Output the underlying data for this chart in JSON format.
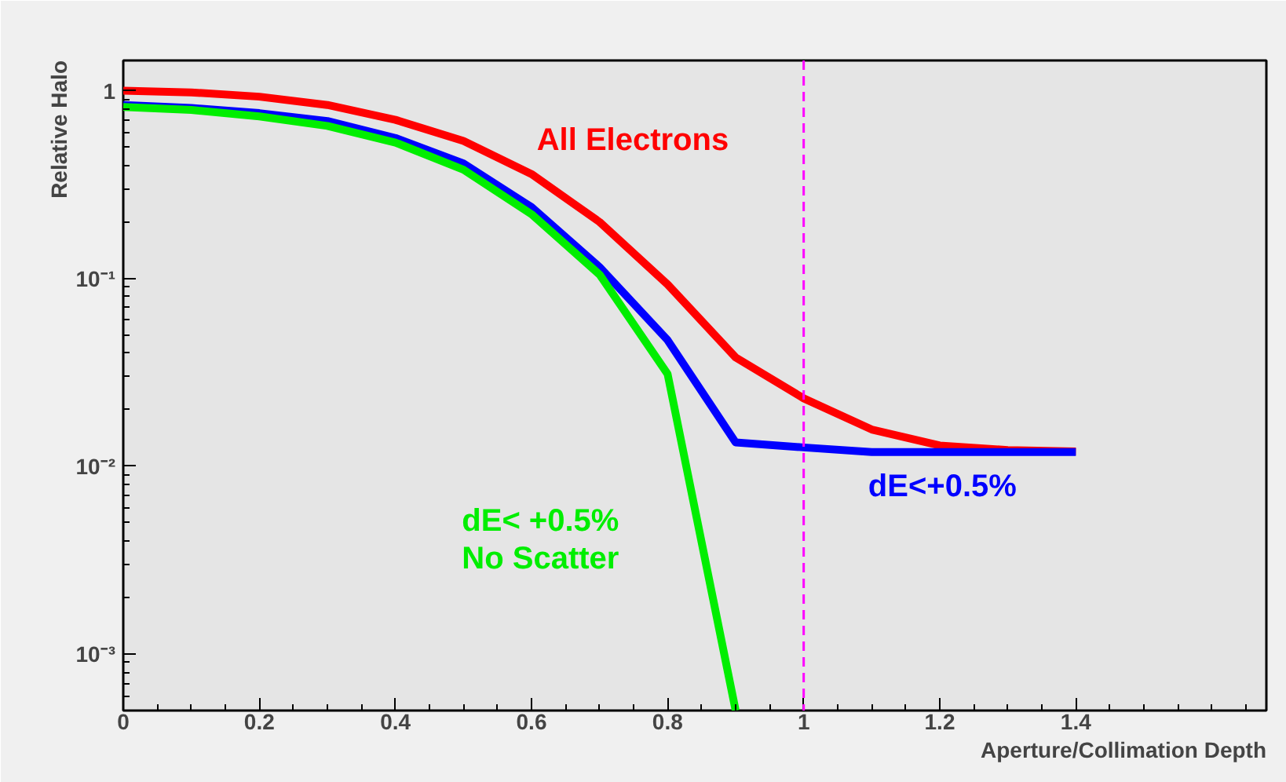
{
  "chart_data": {
    "type": "line",
    "xlabel": "Aperture/Collimation Depth",
    "ylabel": "Relative Halo",
    "log": "y",
    "grid": false,
    "marker": "none",
    "line_style": "solid",
    "x": [
      0,
      0.1,
      0.2,
      0.3,
      0.4,
      0.5,
      0.6,
      0.7,
      0.8,
      0.9,
      1.0,
      1.1,
      1.2,
      1.3,
      1.4
    ],
    "xlim": [
      0,
      1.68
    ],
    "xticks": [
      0,
      0.2,
      0.4,
      0.6,
      0.8,
      1,
      1.2,
      1.4
    ],
    "ylim": [
      0.0005,
      1.45
    ],
    "yticks": [
      {
        "value": 0.001,
        "label": "10⁻³"
      },
      {
        "value": 0.01,
        "label": "10⁻²"
      },
      {
        "value": 0.1,
        "label": "10⁻¹"
      },
      1
    ],
    "series": [
      {
        "name": "All Electrons",
        "color": "#ff0000",
        "values": [
          1.0,
          0.98,
          0.93,
          0.84,
          0.7,
          0.54,
          0.36,
          0.2,
          0.093,
          0.038,
          0.023,
          0.0157,
          0.0129,
          0.0122,
          0.012
        ]
      },
      {
        "name": "dE<+0.5%",
        "color": "#0000ff",
        "values": [
          0.84,
          0.81,
          0.76,
          0.69,
          0.56,
          0.41,
          0.24,
          0.115,
          0.047,
          0.0134,
          0.0126,
          0.0119,
          0.0119,
          0.0119,
          0.0119
        ]
      },
      {
        "name": "dE< +0.5%\nNo Scatter",
        "color": "#00ee00",
        "values": [
          0.82,
          0.79,
          0.73,
          0.65,
          0.53,
          0.38,
          0.22,
          0.105,
          0.031,
          0.0005,
          null,
          null,
          null,
          null,
          null
        ]
      }
    ],
    "ref_lines": [
      {
        "axis": "x",
        "value": 1,
        "color": "#ff00ff",
        "line_style": "dashed"
      }
    ]
  }
}
